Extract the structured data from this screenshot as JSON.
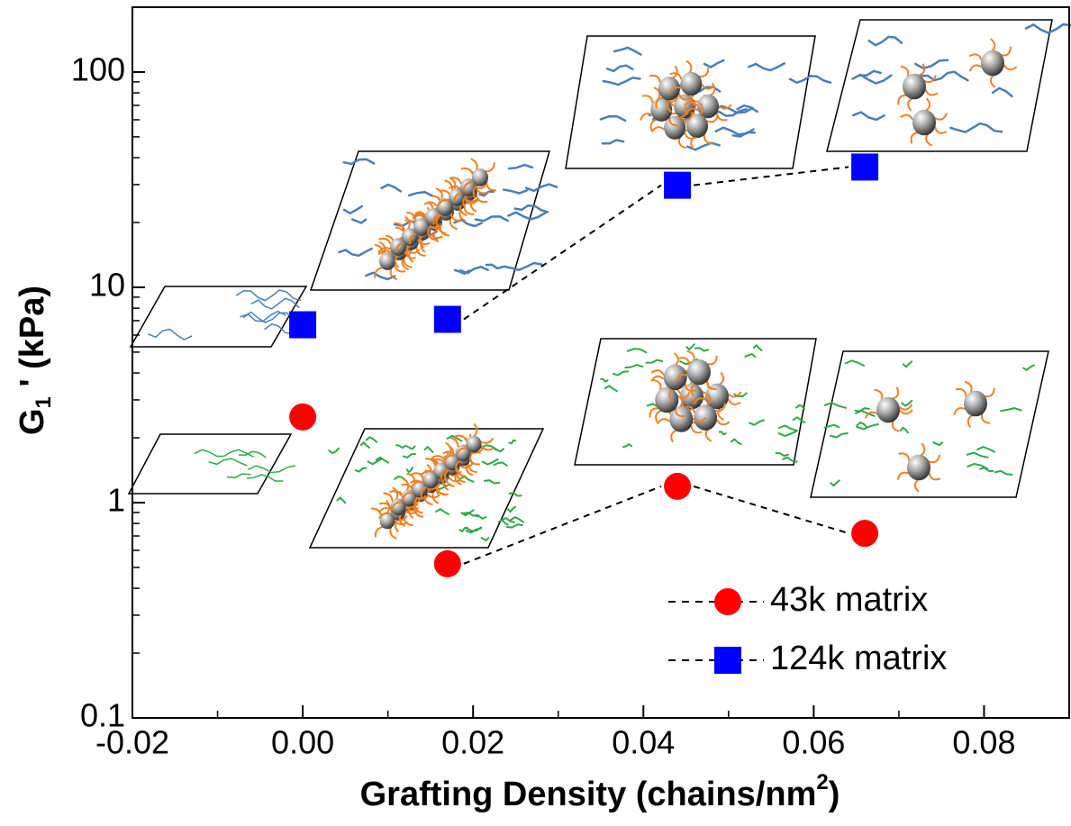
{
  "chart_data": {
    "type": "scatter",
    "x_label": {
      "main": "Grafting Density (chains/nm",
      "sup": "2",
      "end": ")"
    },
    "y_label": {
      "main": "G",
      "sub": "1",
      "end": " ' (kPa)"
    },
    "xlim": [
      -0.02,
      0.09
    ],
    "xticks": [
      -0.02,
      {
        "value": 0,
        "label": "0.00"
      },
      0.02,
      0.04,
      0.06,
      0.08
    ],
    "ylim": [
      0.1,
      200
    ],
    "yticks": [
      0.1,
      1,
      10,
      100
    ],
    "log_y": true,
    "legend": "lower right",
    "series": [
      {
        "name": "43k matrix",
        "color": "#ff0000",
        "marker": "circle",
        "x": [
          0,
          0.017,
          0.044,
          0.066
        ],
        "values": [
          2.5,
          0.52,
          1.19,
          0.72
        ]
      },
      {
        "name": "124k matrix",
        "color": "#0000ff",
        "marker": "square",
        "x": [
          0,
          0.017,
          0.044,
          0.066
        ],
        "values": [
          6.7,
          7.1,
          29.8,
          36.2
        ]
      }
    ]
  }
}
